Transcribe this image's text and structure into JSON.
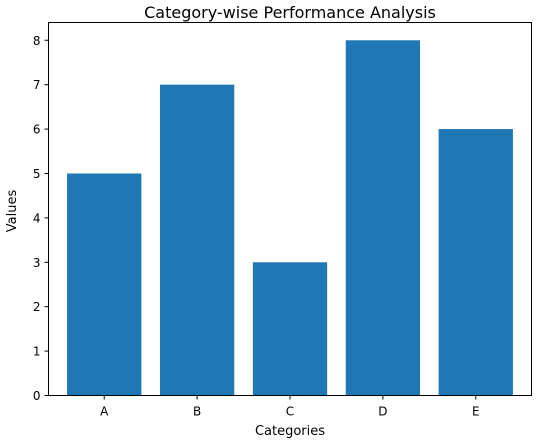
{
  "chart_data": {
    "type": "bar",
    "title": "Category-wise Performance Analysis",
    "xlabel": "Categories",
    "ylabel": "Values",
    "categories": [
      "A",
      "B",
      "C",
      "D",
      "E"
    ],
    "values": [
      5,
      7,
      3,
      8,
      6
    ],
    "ylim": [
      0,
      8.4
    ],
    "yticks": [
      0,
      1,
      2,
      3,
      4,
      5,
      6,
      7,
      8
    ],
    "bar_color": "#1f77b4",
    "grid": false,
    "legend": "none"
  }
}
